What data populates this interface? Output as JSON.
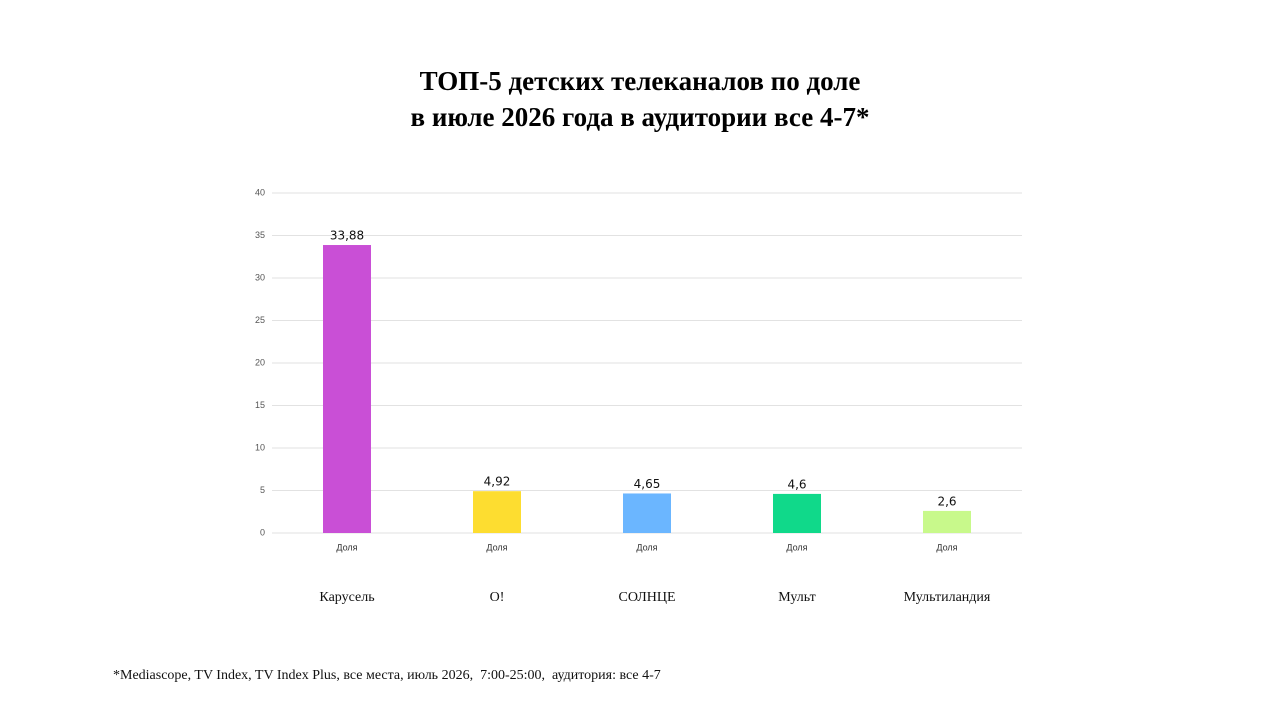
{
  "chart_data": {
    "type": "bar",
    "title": [
      "ТОП-5 детских телеканалов по доле",
      "в июле 2026 года в аудитории все 4-7*"
    ],
    "categories": [
      "Доля",
      "Доля",
      "Доля",
      "Доля",
      "Доля"
    ],
    "channels": [
      "Карусель",
      "О!",
      "СОЛНЦЕ",
      "Мульт",
      "Мультиландия"
    ],
    "values": [
      33.88,
      4.92,
      4.65,
      4.6,
      2.6
    ],
    "value_labels": [
      "33,88",
      "4,92",
      "4,65",
      "4,6",
      "2,6"
    ],
    "colors": [
      "#c94fd6",
      "#fddd30",
      "#6bb6ff",
      "#10d98a",
      "#c8f98b"
    ],
    "ylim": [
      0,
      40
    ],
    "yticks": [
      0,
      5,
      10,
      15,
      20,
      25,
      30,
      35,
      40
    ],
    "grid": true,
    "footnote": "*Mediascope, TV Index, TV Index Plus, все места, июль 2026,  7:00-25:00,  аудитория: все 4-7"
  }
}
